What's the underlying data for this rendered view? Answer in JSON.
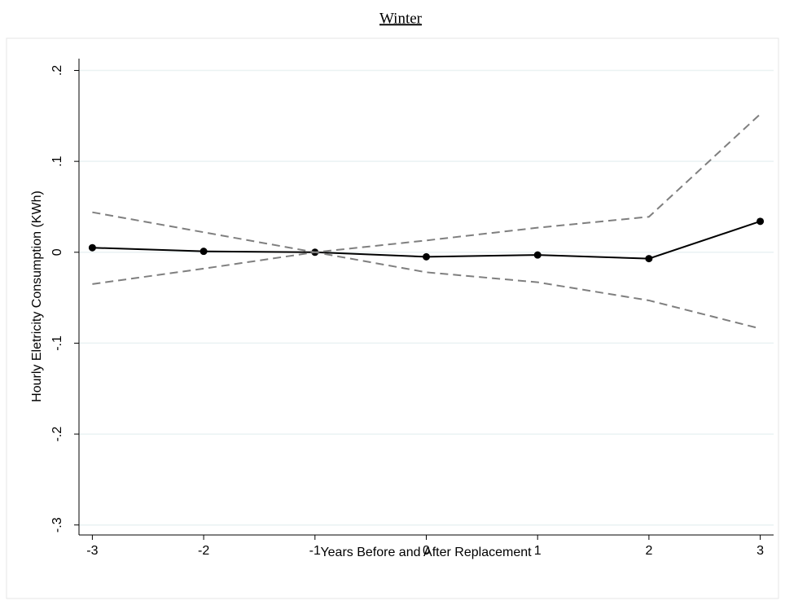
{
  "chart_data": {
    "type": "line",
    "title": "Winter",
    "xlabel": "Years Before and After Replacement",
    "ylabel": "Hourly Eletricity Consumption (KWh)",
    "x": [
      -3,
      -2,
      -1,
      0,
      1,
      2,
      3
    ],
    "series": [
      {
        "color": "#000000",
        "dashed": false,
        "markers": true,
        "values": [
          0.005,
          0.001,
          0,
          -0.005,
          -0.003,
          -0.007,
          0.034
        ]
      },
      {
        "color": "#7f7f7f",
        "dashed": true,
        "markers": false,
        "values": [
          0.044,
          0.022,
          0,
          0.013,
          0.027,
          0.039,
          0.152
        ]
      },
      {
        "color": "#7f7f7f",
        "dashed": true,
        "markers": false,
        "values": [
          -0.035,
          -0.018,
          0,
          -0.022,
          -0.033,
          -0.053,
          -0.084
        ]
      }
    ],
    "xlim": [
      -3.12,
      3.12
    ],
    "xticks": [
      -3,
      -2,
      -1,
      0,
      1,
      2,
      3
    ],
    "ylim": [
      -0.311,
      0.213
    ],
    "yticks": [
      {
        "value": 0.2,
        "label": ".2"
      },
      {
        "value": 0.1,
        "label": ".1"
      },
      0,
      {
        "value": -0.1,
        "label": "-.1"
      },
      {
        "value": -0.2,
        "label": "-.2"
      },
      {
        "value": -0.3,
        "label": "-.3"
      }
    ],
    "grid": true
  }
}
